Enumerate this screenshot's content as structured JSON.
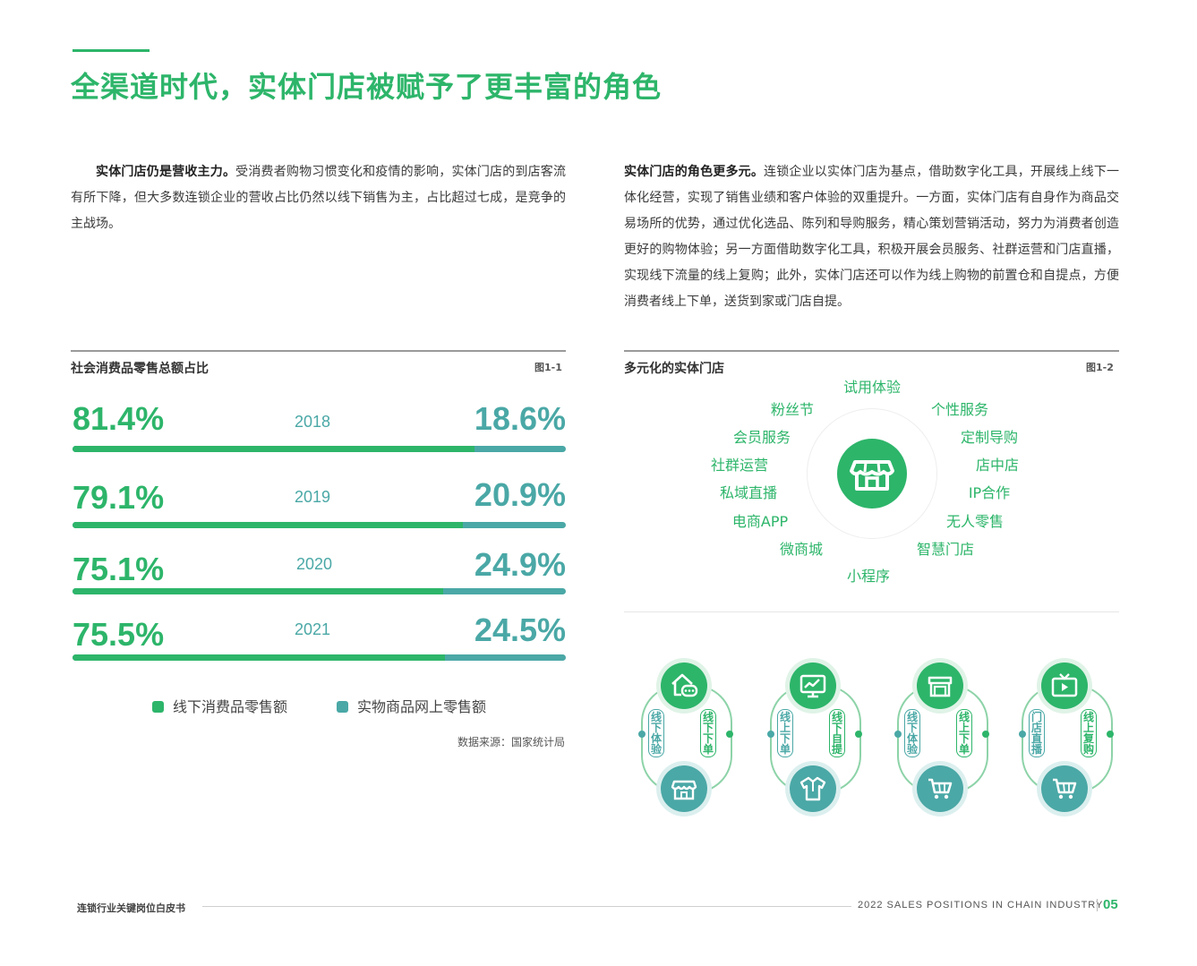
{
  "title": "全渠道时代，实体门店被赋予了更丰富的角色",
  "left_para": {
    "bold": "实体门店仍是营收主力。",
    "text": "受消费者购物习惯变化和疫情的影响，实体门店的到店客流有所下降，但大多数连锁企业的营收占比仍然以线下销售为主，占比超过七成，是竞争的主战场。"
  },
  "right_para": {
    "bold": "实体门店的角色更多元。",
    "text": "连锁企业以实体门店为基点，借助数字化工具，开展线上线下一体化经营，实现了销售业绩和客户体验的双重提升。一方面，实体门店有自身作为商品交易场所的优势，通过优化选品、陈列和导购服务，精心策划营销活动，努力为消费者创造更好的购物体验；另一方面借助数字化工具，积极开展会员服务、社群运营和门店直播，实现线下流量的线上复购；此外，实体门店还可以作为线上购物的前置仓和自提点，方便消费者线上下单，送货到家或门店自提。"
  },
  "fig1": {
    "title": "社会消费品零售总额占比",
    "label": "图1-1",
    "source": "数据来源：国家统计局"
  },
  "chart_data": {
    "type": "bar",
    "categories": [
      "2018",
      "2019",
      "2020",
      "2021"
    ],
    "series": [
      {
        "name": "线下消费品零售额",
        "values": [
          81.4,
          79.1,
          75.1,
          75.5
        ],
        "labels": [
          "81.4%",
          "79.1%",
          "75.1%",
          "75.5%"
        ]
      },
      {
        "name": "实物商品网上零售额",
        "values": [
          18.6,
          20.9,
          24.9,
          24.5
        ],
        "labels": [
          "18.6%",
          "20.9%",
          "24.9%",
          "24.5%"
        ]
      }
    ],
    "stacked": true,
    "orientation": "horizontal",
    "legend_position": "bottom",
    "colors": {
      "offline": "#2db56a",
      "online": "#4aa8a6"
    }
  },
  "fig2": {
    "title": "多元化的实体门店",
    "label": "图1-2",
    "roles": [
      "试用体验",
      "个性服务",
      "定制导购",
      "店中店",
      "IP合作",
      "无人零售",
      "智慧门店",
      "小程序",
      "微商城",
      "电商APP",
      "私域直播",
      "社群运营",
      "会员服务",
      "粉丝节"
    ],
    "center_icon": "storefront-icon",
    "flows": [
      {
        "left": "线下体验",
        "right": "线下下单",
        "top_icon": "home-chat-icon",
        "bottom_icon": "store-icon"
      },
      {
        "left": "线上下单",
        "right": "线下自提",
        "top_icon": "monitor-chart-icon",
        "bottom_icon": "shirt-icon"
      },
      {
        "left": "线下体验",
        "right": "线上下单",
        "top_icon": "shop-icon",
        "bottom_icon": "cart-icon"
      },
      {
        "left": "门店直播",
        "right": "线上复购",
        "top_icon": "tv-play-icon",
        "bottom_icon": "cart-icon"
      }
    ]
  },
  "footer": {
    "left": "连锁行业关键岗位白皮书",
    "right": "2022 SALES POSITIONS IN CHAIN INDUSTRY",
    "page": "05"
  },
  "colors": {
    "green": "#2db56a",
    "teal": "#4aa8a6"
  }
}
